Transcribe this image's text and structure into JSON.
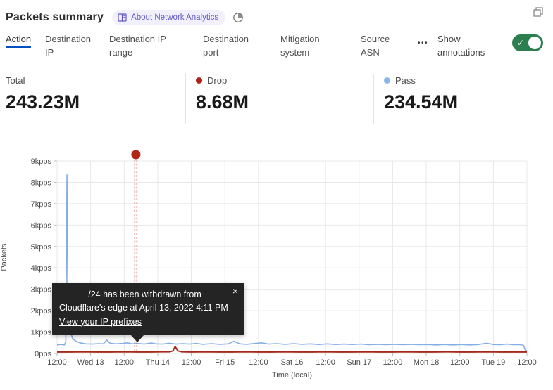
{
  "header": {
    "title": "Packets summary",
    "badge_label": "About Network Analytics"
  },
  "tabs": {
    "items": [
      {
        "label": "Action",
        "active": true
      },
      {
        "label": "Destination IP",
        "active": false
      },
      {
        "label": "Destination IP range",
        "active": false
      },
      {
        "label": "Destination port",
        "active": false
      },
      {
        "label": "Mitigation system",
        "active": false
      },
      {
        "label": "Source ASN",
        "active": false
      }
    ],
    "more_label": "•••",
    "show_annotations_label": "Show annotations",
    "toggle_on": true,
    "toggle_color": "#2c7e4f",
    "active_underline_color": "#0051c3"
  },
  "stats": {
    "total": {
      "label": "Total",
      "value": "243.23M"
    },
    "drop": {
      "label": "Drop",
      "value": "8.68M",
      "color": "#b02015"
    },
    "pass": {
      "label": "Pass",
      "value": "234.54M",
      "color": "#8cb7ed"
    }
  },
  "tooltip": {
    "line1": "/24 has been withdrawn from",
    "line2": "Cloudflare's edge at April 13, 2022 4:11 PM",
    "link": "View your IP prefixes",
    "close": "×"
  },
  "chart_data": {
    "type": "line",
    "title": "Packets summary",
    "xlabel": "Time (local)",
    "ylabel": "Packets",
    "y_unit": "kpps",
    "ylim": [
      0,
      9
    ],
    "grid": true,
    "legend_position": "top-stats",
    "x_tick_labels": [
      "12:00",
      "Wed 13",
      "12:00",
      "Thu 14",
      "12:00",
      "Fri 15",
      "12:00",
      "Sat 16",
      "12:00",
      "Sun 17",
      "12:00",
      "Mon 18",
      "12:00",
      "Tue 19",
      "12:00"
    ],
    "y_tick_labels": [
      "0pps",
      "1kpps",
      "2kpps",
      "3kpps",
      "4kpps",
      "5kpps",
      "6kpps",
      "7kpps",
      "8kpps",
      "9kpps"
    ],
    "series": [
      {
        "name": "Pass",
        "color": "#85aee4",
        "width": 1.6,
        "points": [
          [
            0,
            0.4
          ],
          [
            0.12,
            0.42
          ],
          [
            0.22,
            0.4
          ],
          [
            0.26,
            0.55
          ],
          [
            0.295,
            8.35
          ],
          [
            0.325,
            1.15
          ],
          [
            0.4,
            1.0
          ],
          [
            0.46,
            0.72
          ],
          [
            0.55,
            0.58
          ],
          [
            0.68,
            0.5
          ],
          [
            0.85,
            0.45
          ],
          [
            1.05,
            0.44
          ],
          [
            1.25,
            0.46
          ],
          [
            1.38,
            0.45
          ],
          [
            1.48,
            0.63
          ],
          [
            1.58,
            0.48
          ],
          [
            1.75,
            0.45
          ],
          [
            1.95,
            0.47
          ],
          [
            2.1,
            0.5
          ],
          [
            2.22,
            0.45
          ],
          [
            2.4,
            0.47
          ],
          [
            2.6,
            0.44
          ],
          [
            2.8,
            0.49
          ],
          [
            2.95,
            0.45
          ],
          [
            3.15,
            0.44
          ],
          [
            3.35,
            0.48
          ],
          [
            3.55,
            0.44
          ],
          [
            3.75,
            0.46
          ],
          [
            3.95,
            0.44
          ],
          [
            4.15,
            0.47
          ],
          [
            4.35,
            0.43
          ],
          [
            4.6,
            0.46
          ],
          [
            4.85,
            0.43
          ],
          [
            5.1,
            0.45
          ],
          [
            5.27,
            0.57
          ],
          [
            5.45,
            0.45
          ],
          [
            5.65,
            0.43
          ],
          [
            5.9,
            0.47
          ],
          [
            6.1,
            0.5
          ],
          [
            6.3,
            0.44
          ],
          [
            6.55,
            0.46
          ],
          [
            6.8,
            0.43
          ],
          [
            7.05,
            0.46
          ],
          [
            7.3,
            0.43
          ],
          [
            7.55,
            0.45
          ],
          [
            7.8,
            0.42
          ],
          [
            8.05,
            0.45
          ],
          [
            8.3,
            0.42
          ],
          [
            8.55,
            0.44
          ],
          [
            8.8,
            0.42
          ],
          [
            9.05,
            0.44
          ],
          [
            9.3,
            0.41
          ],
          [
            9.55,
            0.43
          ],
          [
            9.8,
            0.41
          ],
          [
            10.05,
            0.43
          ],
          [
            10.3,
            0.41
          ],
          [
            10.55,
            0.43
          ],
          [
            10.8,
            0.41
          ],
          [
            11.05,
            0.42
          ],
          [
            11.3,
            0.4
          ],
          [
            11.55,
            0.42
          ],
          [
            11.8,
            0.4
          ],
          [
            12.05,
            0.42
          ],
          [
            12.3,
            0.4
          ],
          [
            12.55,
            0.42
          ],
          [
            12.8,
            0.48
          ],
          [
            13.0,
            0.42
          ],
          [
            13.2,
            0.41
          ],
          [
            13.4,
            0.44
          ],
          [
            13.6,
            0.41
          ],
          [
            13.8,
            0.41
          ],
          [
            13.9,
            0.38
          ],
          [
            13.95,
            0.16
          ],
          [
            14,
            0.12
          ]
        ]
      },
      {
        "name": "Drop",
        "color": "#a5291c",
        "width": 2,
        "points": [
          [
            0,
            0.07
          ],
          [
            0.4,
            0.07
          ],
          [
            0.8,
            0.08
          ],
          [
            1.2,
            0.07
          ],
          [
            1.6,
            0.07
          ],
          [
            2.0,
            0.08
          ],
          [
            2.4,
            0.07
          ],
          [
            2.8,
            0.07
          ],
          [
            3.1,
            0.08
          ],
          [
            3.35,
            0.08
          ],
          [
            3.45,
            0.12
          ],
          [
            3.52,
            0.33
          ],
          [
            3.6,
            0.12
          ],
          [
            3.72,
            0.08
          ],
          [
            4.0,
            0.07
          ],
          [
            4.4,
            0.08
          ],
          [
            4.8,
            0.07
          ],
          [
            5.2,
            0.07
          ],
          [
            5.6,
            0.08
          ],
          [
            6.0,
            0.07
          ],
          [
            6.4,
            0.07
          ],
          [
            6.8,
            0.08
          ],
          [
            7.2,
            0.07
          ],
          [
            7.6,
            0.07
          ],
          [
            8.0,
            0.08
          ],
          [
            8.4,
            0.07
          ],
          [
            8.8,
            0.07
          ],
          [
            9.2,
            0.08
          ],
          [
            9.6,
            0.07
          ],
          [
            10.0,
            0.07
          ],
          [
            10.4,
            0.08
          ],
          [
            10.8,
            0.07
          ],
          [
            11.2,
            0.07
          ],
          [
            11.6,
            0.08
          ],
          [
            12.0,
            0.07
          ],
          [
            12.4,
            0.07
          ],
          [
            12.8,
            0.08
          ],
          [
            13.2,
            0.07
          ],
          [
            13.6,
            0.07
          ],
          [
            14,
            0.07
          ]
        ]
      }
    ],
    "annotation": {
      "x_tick": 2.349,
      "date": "April 13, 2022 4:11 PM",
      "color": "#b2261a",
      "style": "vertical-dashed-line-with-dot"
    }
  }
}
